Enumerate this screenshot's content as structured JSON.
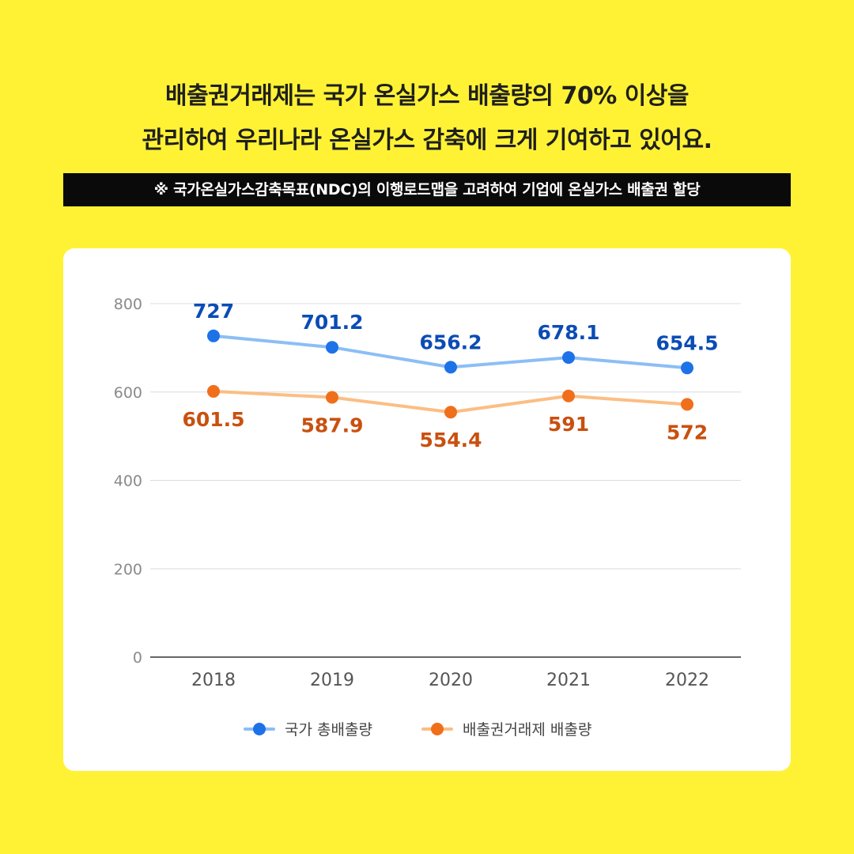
{
  "header": {
    "line1": "배출권거래제는 국가 온실가스 배출량의 70% 이상을",
    "line2": "관리하여 우리나라 온실가스 감축에 크게 기여하고 있어요.",
    "note": "※ 국가온실가스감축목표(NDC)의 이행로드맵을 고려하여 기업에 온실가스 배출권 할당"
  },
  "chart_data": {
    "type": "line",
    "title": "",
    "xlabel": "",
    "ylabel": "",
    "categories": [
      "2018",
      "2019",
      "2020",
      "2021",
      "2022"
    ],
    "ylim": [
      0,
      800
    ],
    "yticks": [
      0,
      200,
      400,
      600,
      800
    ],
    "ytick_labels": [
      "0",
      "200",
      "400",
      "600",
      "800"
    ],
    "grid": true,
    "legend": "bottom-center",
    "series": [
      {
        "name": "국가 총배출량",
        "values": [
          727,
          701.2,
          656.2,
          678.1,
          654.5
        ],
        "labels": [
          "727",
          "701.2",
          "656.2",
          "678.1",
          "654.5"
        ],
        "label_position": "above",
        "line_color": "#8CBEF5",
        "marker_color": "#1D72E8",
        "label_color": "#0B4CB5"
      },
      {
        "name": "배출권거래제 배출량",
        "values": [
          601.5,
          587.9,
          554.4,
          591,
          572
        ],
        "labels": [
          "601.5",
          "587.9",
          "554.4",
          "591",
          "572"
        ],
        "label_position": "below",
        "line_color": "#FBBE84",
        "marker_color": "#F06F1B",
        "label_color": "#C9500F"
      }
    ]
  }
}
